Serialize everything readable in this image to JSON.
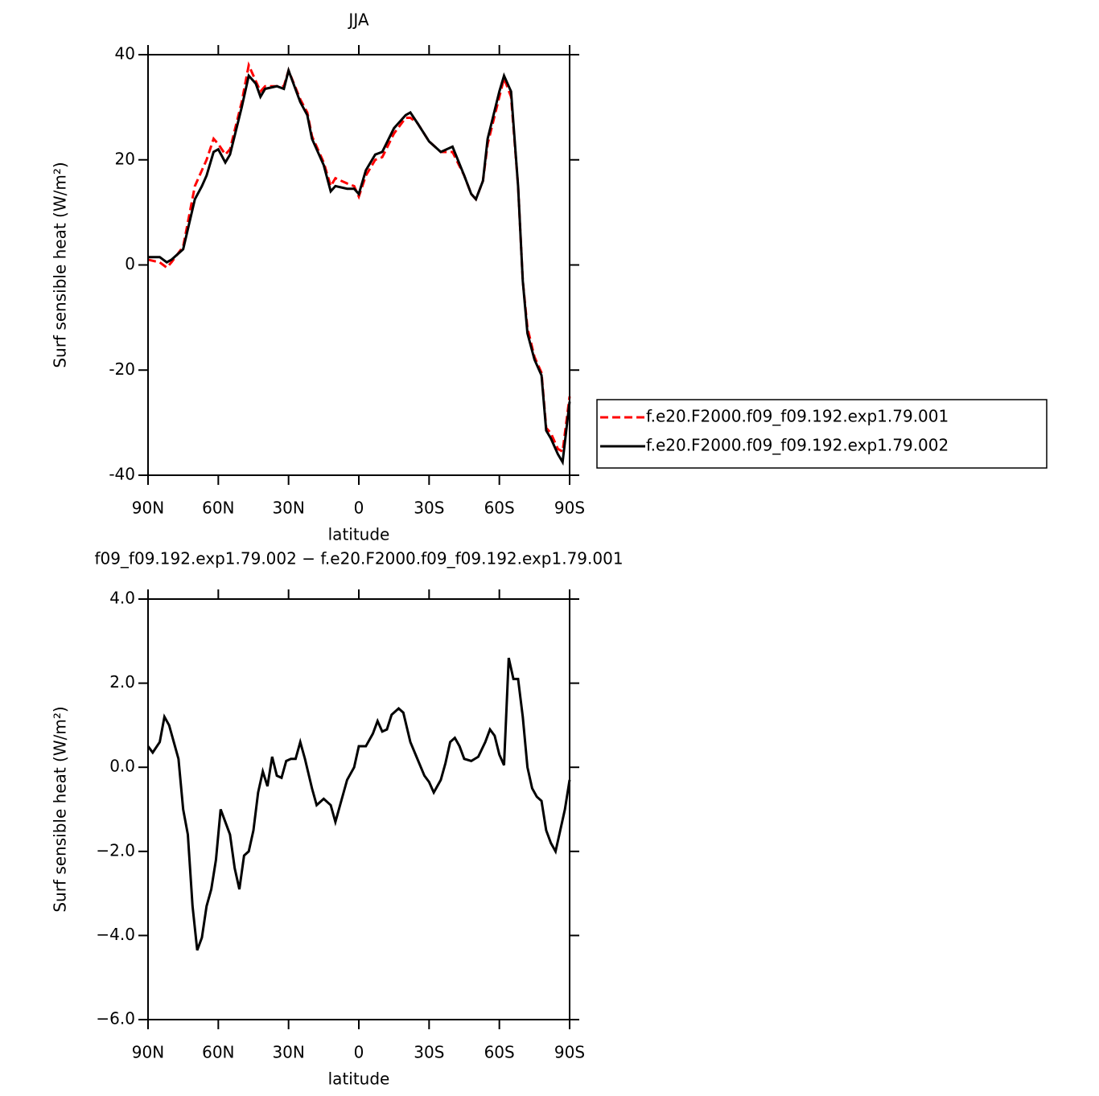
{
  "chart_data": [
    {
      "type": "line",
      "title": "JJA",
      "xlabel": "latitude",
      "ylabel": "Surf sensible heat (W/m²)",
      "x": [
        90,
        85,
        82,
        80,
        75,
        70,
        67,
        65,
        62,
        60,
        57,
        55,
        50,
        47,
        44,
        42,
        40,
        35,
        32,
        30,
        25,
        22,
        20,
        15,
        12,
        10,
        5,
        2,
        0,
        -3,
        -7,
        -10,
        -15,
        -20,
        -22,
        -25,
        -30,
        -35,
        -40,
        -45,
        -48,
        -50,
        -53,
        -55,
        -60,
        -62,
        -65,
        -68,
        -70,
        -72,
        -75,
        -78,
        -80,
        -82,
        -85,
        -87,
        -90
      ],
      "series": [
        {
          "name": "f.e20.F2000.f09_f09.192.exp1.79.001",
          "color": "#ff0000",
          "dashed": true,
          "values": [
            1,
            0.5,
            -0.5,
            0.5,
            3.5,
            15,
            18,
            20,
            24,
            23,
            21,
            22,
            31,
            38,
            35,
            33,
            34,
            34,
            34,
            37,
            31.5,
            29,
            24.5,
            19.5,
            15,
            16.5,
            15.5,
            15,
            13,
            17,
            20,
            20.5,
            25,
            28,
            28,
            27,
            23.5,
            21.5,
            21.5,
            17,
            13.5,
            12.5,
            16,
            23,
            32,
            35.5,
            32,
            15,
            -3,
            -12,
            -17.5,
            -20.5,
            -31,
            -32,
            -35,
            -35.5,
            -25
          ]
        },
        {
          "name": "f.e20.F2000.f09_f09.192.exp1.79.002",
          "color": "#000000",
          "dashed": false,
          "values": [
            1.5,
            1.5,
            0.5,
            1,
            3,
            12.5,
            15,
            17,
            21.5,
            22,
            19.5,
            21,
            30,
            36,
            34.5,
            32,
            33.5,
            34,
            33.5,
            37,
            31,
            28.5,
            24,
            19,
            14,
            15,
            14.5,
            14.5,
            13.5,
            18,
            21,
            21.5,
            26,
            28.5,
            29,
            27,
            23.5,
            21.5,
            22.5,
            17,
            13.5,
            12.5,
            16,
            24,
            33,
            36,
            33,
            15,
            -3,
            -13,
            -18,
            -21,
            -31.5,
            -33,
            -36,
            -37.5,
            -26
          ]
        }
      ],
      "xlim": [
        90,
        -90
      ],
      "xticks": [
        {
          "value": 90,
          "label": "90N"
        },
        {
          "value": 60,
          "label": "60N"
        },
        {
          "value": 30,
          "label": "30N"
        },
        0,
        {
          "value": -30,
          "label": "30S"
        },
        {
          "value": -60,
          "label": "60S"
        },
        {
          "value": -90,
          "label": "90S"
        }
      ],
      "ylim": [
        -40,
        40
      ],
      "yticks": [
        -40,
        -20,
        0,
        20,
        40
      ],
      "legend": "right"
    },
    {
      "type": "line",
      "title": "f09_f09.192.exp1.79.002 − f.e20.F2000.f09_f09.192.exp1.79.001",
      "xlabel": "latitude",
      "ylabel": "Surf sensible heat (W/m²)",
      "x": [
        90,
        88,
        85,
        83,
        81,
        79,
        77,
        75,
        73,
        71,
        69,
        67,
        65,
        63,
        61,
        59,
        57,
        55,
        53,
        51,
        49,
        47,
        45,
        43,
        41,
        39,
        37,
        35,
        33,
        31,
        29,
        27,
        25,
        23,
        20,
        18,
        15,
        12,
        10,
        8,
        5,
        2,
        0,
        -3,
        -6,
        -8,
        -10,
        -12,
        -14,
        -17,
        -19,
        -22,
        -25,
        -28,
        -30,
        -32,
        -35,
        -37,
        -39,
        -41,
        -43,
        -45,
        -48,
        -51,
        -54,
        -56,
        -58,
        -60,
        -62,
        -64,
        -66,
        -68,
        -70,
        -72,
        -74,
        -76,
        -78,
        -80,
        -82,
        -84,
        -86,
        -88,
        -90
      ],
      "series": [
        {
          "color": "#000000",
          "dashed": false,
          "values": [
            0.5,
            0.35,
            0.6,
            1.2,
            1.0,
            0.6,
            0.2,
            -1.0,
            -1.6,
            -3.3,
            -4.35,
            -4.05,
            -3.3,
            -2.9,
            -2.2,
            -1.0,
            -1.3,
            -1.6,
            -2.4,
            -2.9,
            -2.1,
            -2.0,
            -1.5,
            -0.6,
            -0.1,
            -0.45,
            0.25,
            -0.2,
            -0.25,
            0.15,
            0.2,
            0.2,
            0.6,
            0.2,
            -0.5,
            -0.9,
            -0.75,
            -0.9,
            -1.3,
            -0.9,
            -0.3,
            0.0,
            0.5,
            0.5,
            0.8,
            1.1,
            0.85,
            0.9,
            1.25,
            1.4,
            1.3,
            0.6,
            0.2,
            -0.2,
            -0.35,
            -0.6,
            -0.3,
            0.1,
            0.6,
            0.7,
            0.5,
            0.2,
            0.15,
            0.25,
            0.6,
            0.9,
            0.75,
            0.3,
            0.05,
            2.6,
            2.1,
            2.1,
            1.2,
            0.0,
            -0.5,
            -0.7,
            -0.8,
            -1.5,
            -1.8,
            -2.0,
            -1.5,
            -1.0,
            -0.3
          ]
        }
      ],
      "xlim": [
        90,
        -90
      ],
      "xticks": [
        {
          "value": 90,
          "label": "90N"
        },
        {
          "value": 60,
          "label": "60N"
        },
        {
          "value": 30,
          "label": "30N"
        },
        0,
        {
          "value": -30,
          "label": "30S"
        },
        {
          "value": -60,
          "label": "60S"
        },
        {
          "value": -90,
          "label": "90S"
        }
      ],
      "ylim": [
        -6,
        4
      ],
      "yticks": [
        {
          "value": -6,
          "label": "−6.0"
        },
        {
          "value": -4,
          "label": "−4.0"
        },
        {
          "value": -2,
          "label": "−2.0"
        },
        {
          "value": 0,
          "label": "0.0"
        },
        {
          "value": 2,
          "label": "2.0"
        },
        {
          "value": 4,
          "label": "4.0"
        }
      ]
    }
  ]
}
